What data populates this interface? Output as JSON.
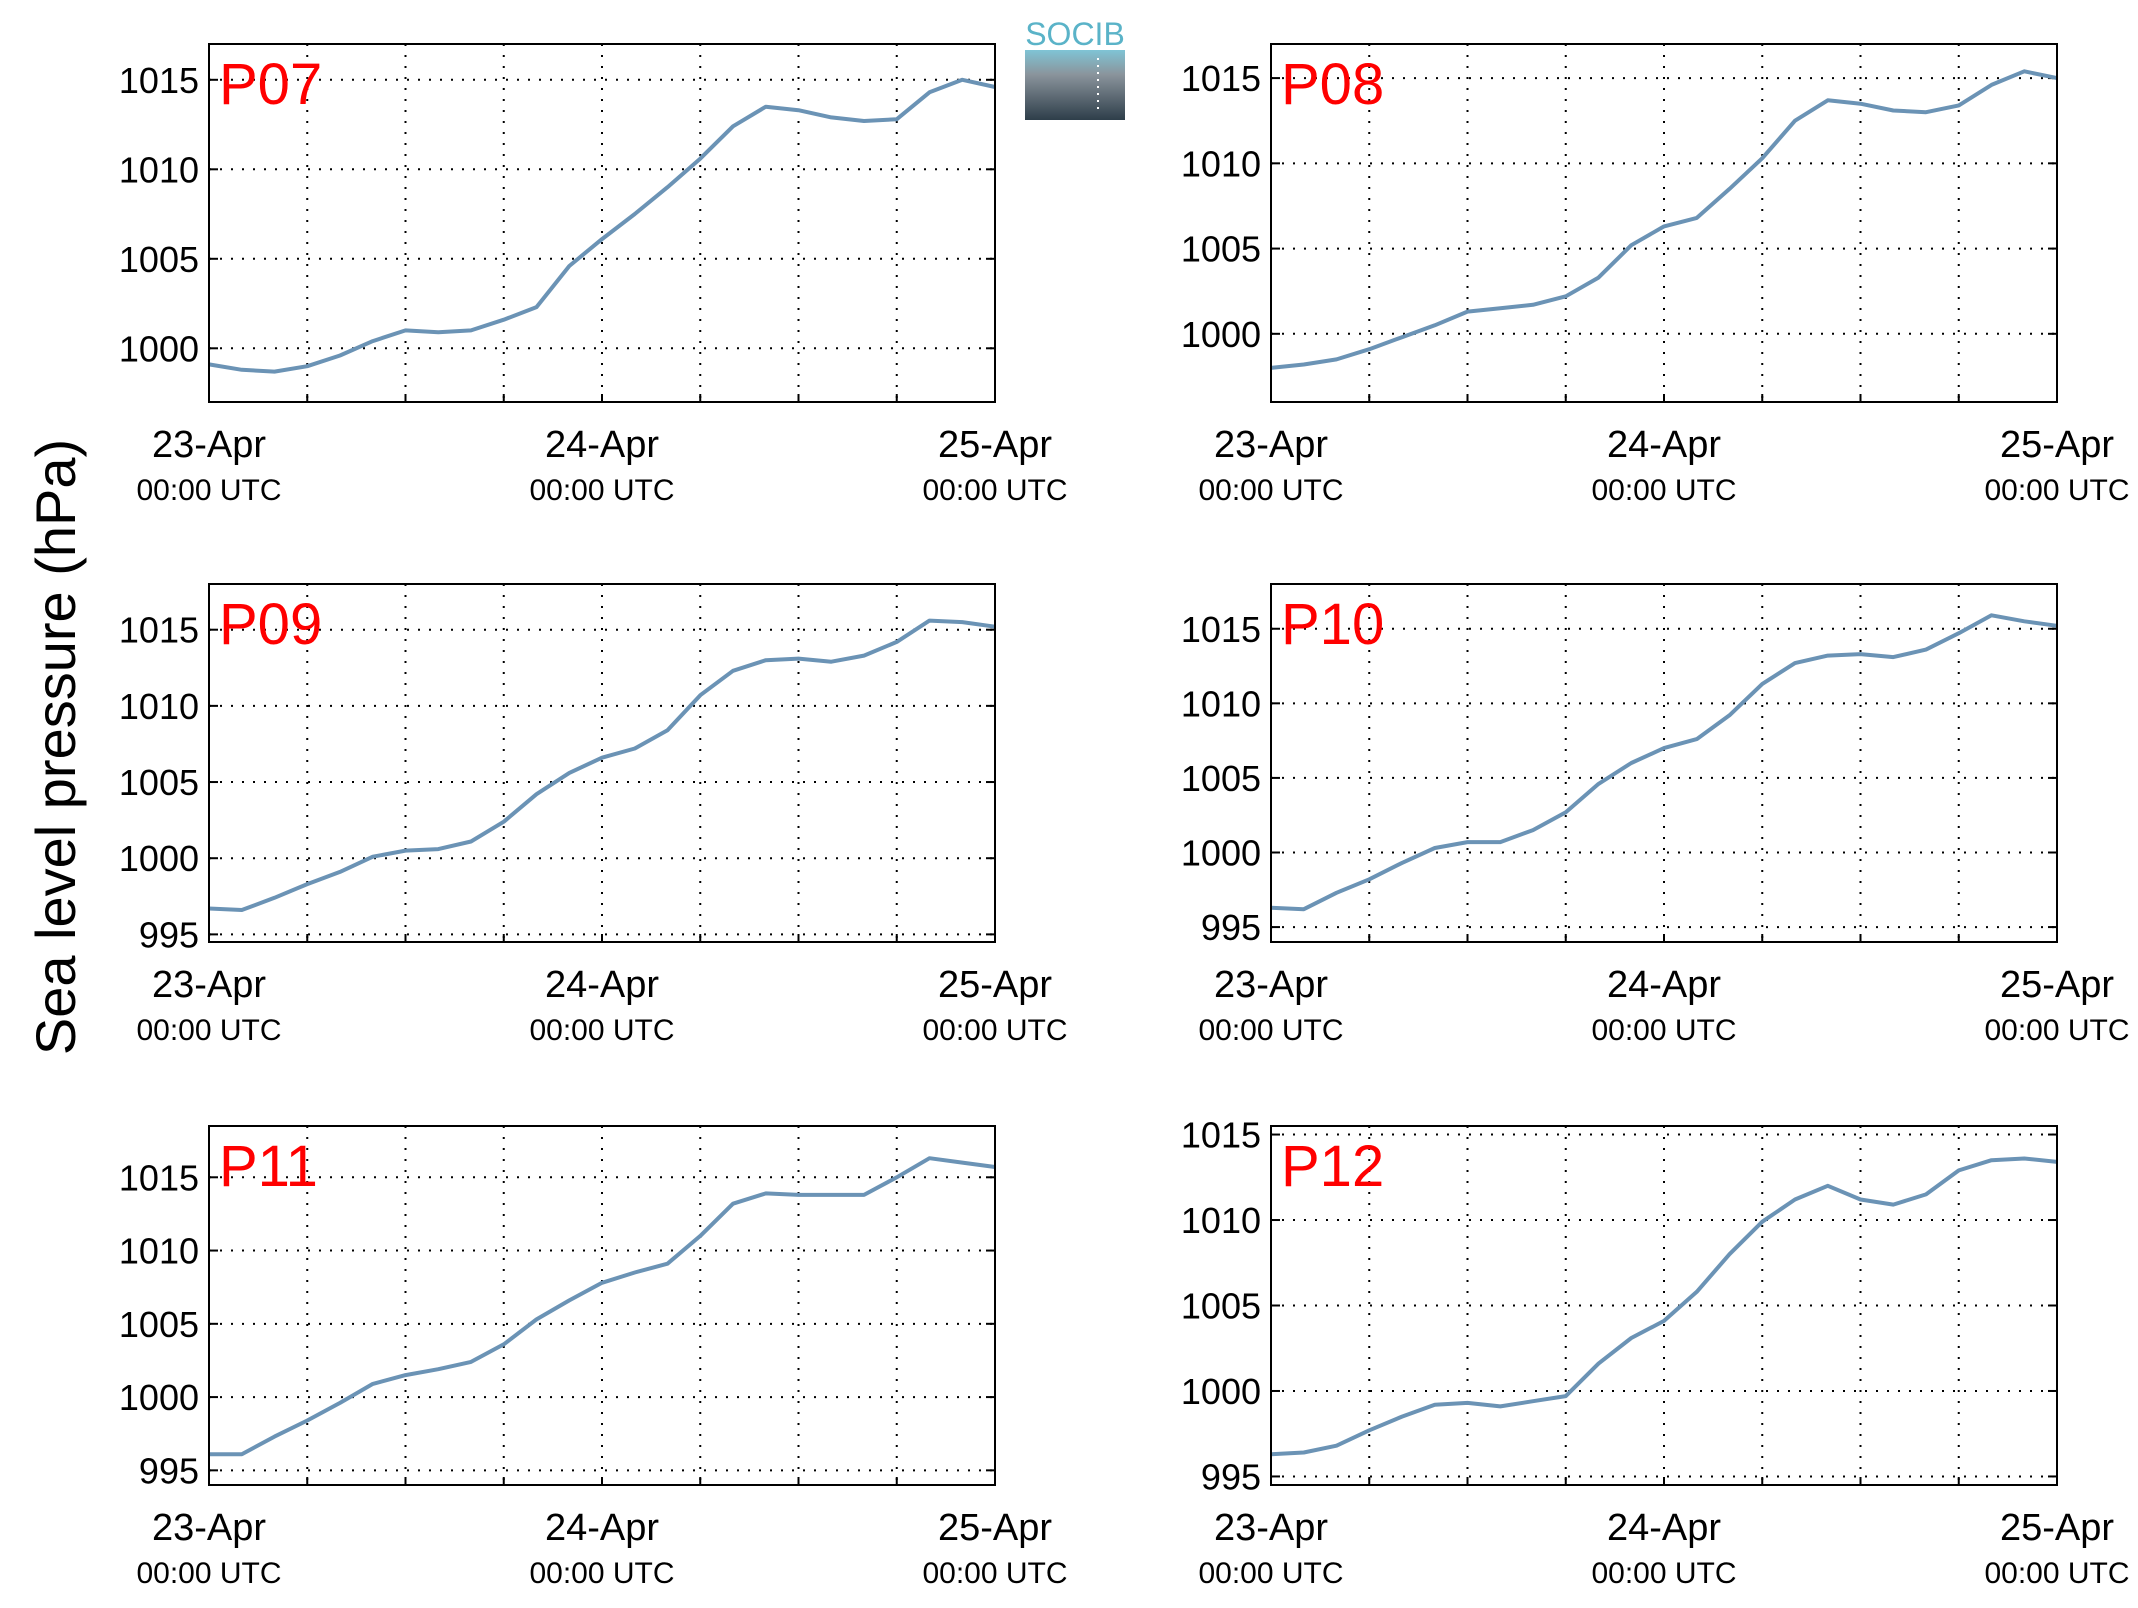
{
  "figure": {
    "ylabel": "Sea level pressure (hPa)",
    "logo_text": "SOCIB",
    "x_ticks": [
      {
        "date": "23-Apr",
        "time": "00:00 UTC"
      },
      {
        "date": "24-Apr",
        "time": "00:00 UTC"
      },
      {
        "date": "25-Apr",
        "time": "00:00 UTC"
      }
    ]
  },
  "colors": {
    "series": "#6b93b5",
    "panel_label": "#ff0000",
    "axis": "#000000",
    "logo_text": "#5ab3c8",
    "logo_top": "#7fc4d5",
    "logo_bottom": "#2e3e4a"
  },
  "chart_data": [
    {
      "type": "line",
      "label": "P07",
      "x_unit": "hours since 23-Apr 00:00 UTC",
      "ylim": [
        997,
        1017
      ],
      "yticks": [
        1000,
        1005,
        1010,
        1015
      ],
      "grid": true,
      "x": [
        0,
        2,
        4,
        6,
        8,
        10,
        12,
        14,
        16,
        18,
        20,
        22,
        24,
        26,
        28,
        30,
        32,
        34,
        36,
        38,
        40,
        42,
        44,
        46,
        48
      ],
      "y": [
        999.1,
        998.8,
        998.7,
        999.0,
        999.6,
        1000.4,
        1001.0,
        1000.9,
        1001.0,
        1001.6,
        1002.3,
        1004.6,
        1006.1,
        1007.5,
        1009.0,
        1010.6,
        1012.4,
        1013.5,
        1013.3,
        1012.9,
        1012.7,
        1012.8,
        1014.3,
        1015.0,
        1014.6
      ]
    },
    {
      "type": "line",
      "label": "P08",
      "x_unit": "hours since 23-Apr 00:00 UTC",
      "ylim": [
        996,
        1017
      ],
      "yticks": [
        1000,
        1005,
        1010,
        1015
      ],
      "grid": true,
      "x": [
        0,
        2,
        4,
        6,
        8,
        10,
        12,
        14,
        16,
        18,
        20,
        22,
        24,
        26,
        28,
        30,
        32,
        34,
        36,
        38,
        40,
        42,
        44,
        46,
        48
      ],
      "y": [
        998.0,
        998.2,
        998.5,
        999.1,
        999.8,
        1000.5,
        1001.3,
        1001.5,
        1001.7,
        1002.2,
        1003.3,
        1005.2,
        1006.3,
        1006.8,
        1008.5,
        1010.3,
        1012.5,
        1013.7,
        1013.5,
        1013.1,
        1013.0,
        1013.4,
        1014.6,
        1015.4,
        1015.0
      ]
    },
    {
      "type": "line",
      "label": "P09",
      "x_unit": "hours since 23-Apr 00:00 UTC",
      "ylim": [
        994.5,
        1018
      ],
      "yticks": [
        995,
        1000,
        1005,
        1010,
        1015
      ],
      "grid": true,
      "x": [
        0,
        2,
        4,
        6,
        8,
        10,
        12,
        14,
        16,
        18,
        20,
        22,
        24,
        26,
        28,
        30,
        32,
        34,
        36,
        38,
        40,
        42,
        44,
        46,
        48
      ],
      "y": [
        996.7,
        996.6,
        997.4,
        998.3,
        999.1,
        1000.1,
        1000.5,
        1000.6,
        1001.1,
        1002.4,
        1004.2,
        1005.6,
        1006.6,
        1007.2,
        1008.4,
        1010.7,
        1012.3,
        1013.0,
        1013.1,
        1012.9,
        1013.3,
        1014.2,
        1015.6,
        1015.5,
        1015.2
      ]
    },
    {
      "type": "line",
      "label": "P10",
      "x_unit": "hours since 23-Apr 00:00 UTC",
      "ylim": [
        994,
        1018
      ],
      "yticks": [
        995,
        1000,
        1005,
        1010,
        1015
      ],
      "grid": true,
      "x": [
        0,
        2,
        4,
        6,
        8,
        10,
        12,
        14,
        16,
        18,
        20,
        22,
        24,
        26,
        28,
        30,
        32,
        34,
        36,
        38,
        40,
        42,
        44,
        46,
        48
      ],
      "y": [
        996.3,
        996.2,
        997.3,
        998.2,
        999.3,
        1000.3,
        1000.7,
        1000.7,
        1001.5,
        1002.7,
        1004.6,
        1006.0,
        1007.0,
        1007.6,
        1009.2,
        1011.3,
        1012.7,
        1013.2,
        1013.3,
        1013.1,
        1013.6,
        1014.7,
        1015.9,
        1015.5,
        1015.2
      ]
    },
    {
      "type": "line",
      "label": "P11",
      "x_unit": "hours since 23-Apr 00:00 UTC",
      "ylim": [
        994,
        1018.5
      ],
      "yticks": [
        995,
        1000,
        1005,
        1010,
        1015
      ],
      "grid": true,
      "x": [
        0,
        2,
        4,
        6,
        8,
        10,
        12,
        14,
        16,
        18,
        20,
        22,
        24,
        26,
        28,
        30,
        32,
        34,
        36,
        38,
        40,
        42,
        44,
        46,
        48
      ],
      "y": [
        996.1,
        996.1,
        997.3,
        998.4,
        999.6,
        1000.9,
        1001.5,
        1001.9,
        1002.4,
        1003.6,
        1005.3,
        1006.6,
        1007.8,
        1008.5,
        1009.1,
        1011.0,
        1013.2,
        1013.9,
        1013.8,
        1013.8,
        1013.8,
        1015.0,
        1016.3,
        1016.0,
        1015.7
      ]
    },
    {
      "type": "line",
      "label": "P12",
      "x_unit": "hours since 23-Apr 00:00 UTC",
      "ylim": [
        994.5,
        1015.5
      ],
      "yticks": [
        995,
        1000,
        1005,
        1010,
        1015
      ],
      "grid": true,
      "x": [
        0,
        2,
        4,
        6,
        8,
        10,
        12,
        14,
        16,
        18,
        20,
        22,
        24,
        26,
        28,
        30,
        32,
        34,
        36,
        38,
        40,
        42,
        44,
        46,
        48
      ],
      "y": [
        996.3,
        996.4,
        996.8,
        997.7,
        998.5,
        999.2,
        999.3,
        999.1,
        999.4,
        999.7,
        1001.6,
        1003.1,
        1004.1,
        1005.8,
        1008.0,
        1009.9,
        1011.2,
        1012.0,
        1011.2,
        1010.9,
        1011.5,
        1012.9,
        1013.5,
        1013.6,
        1013.4
      ]
    }
  ]
}
